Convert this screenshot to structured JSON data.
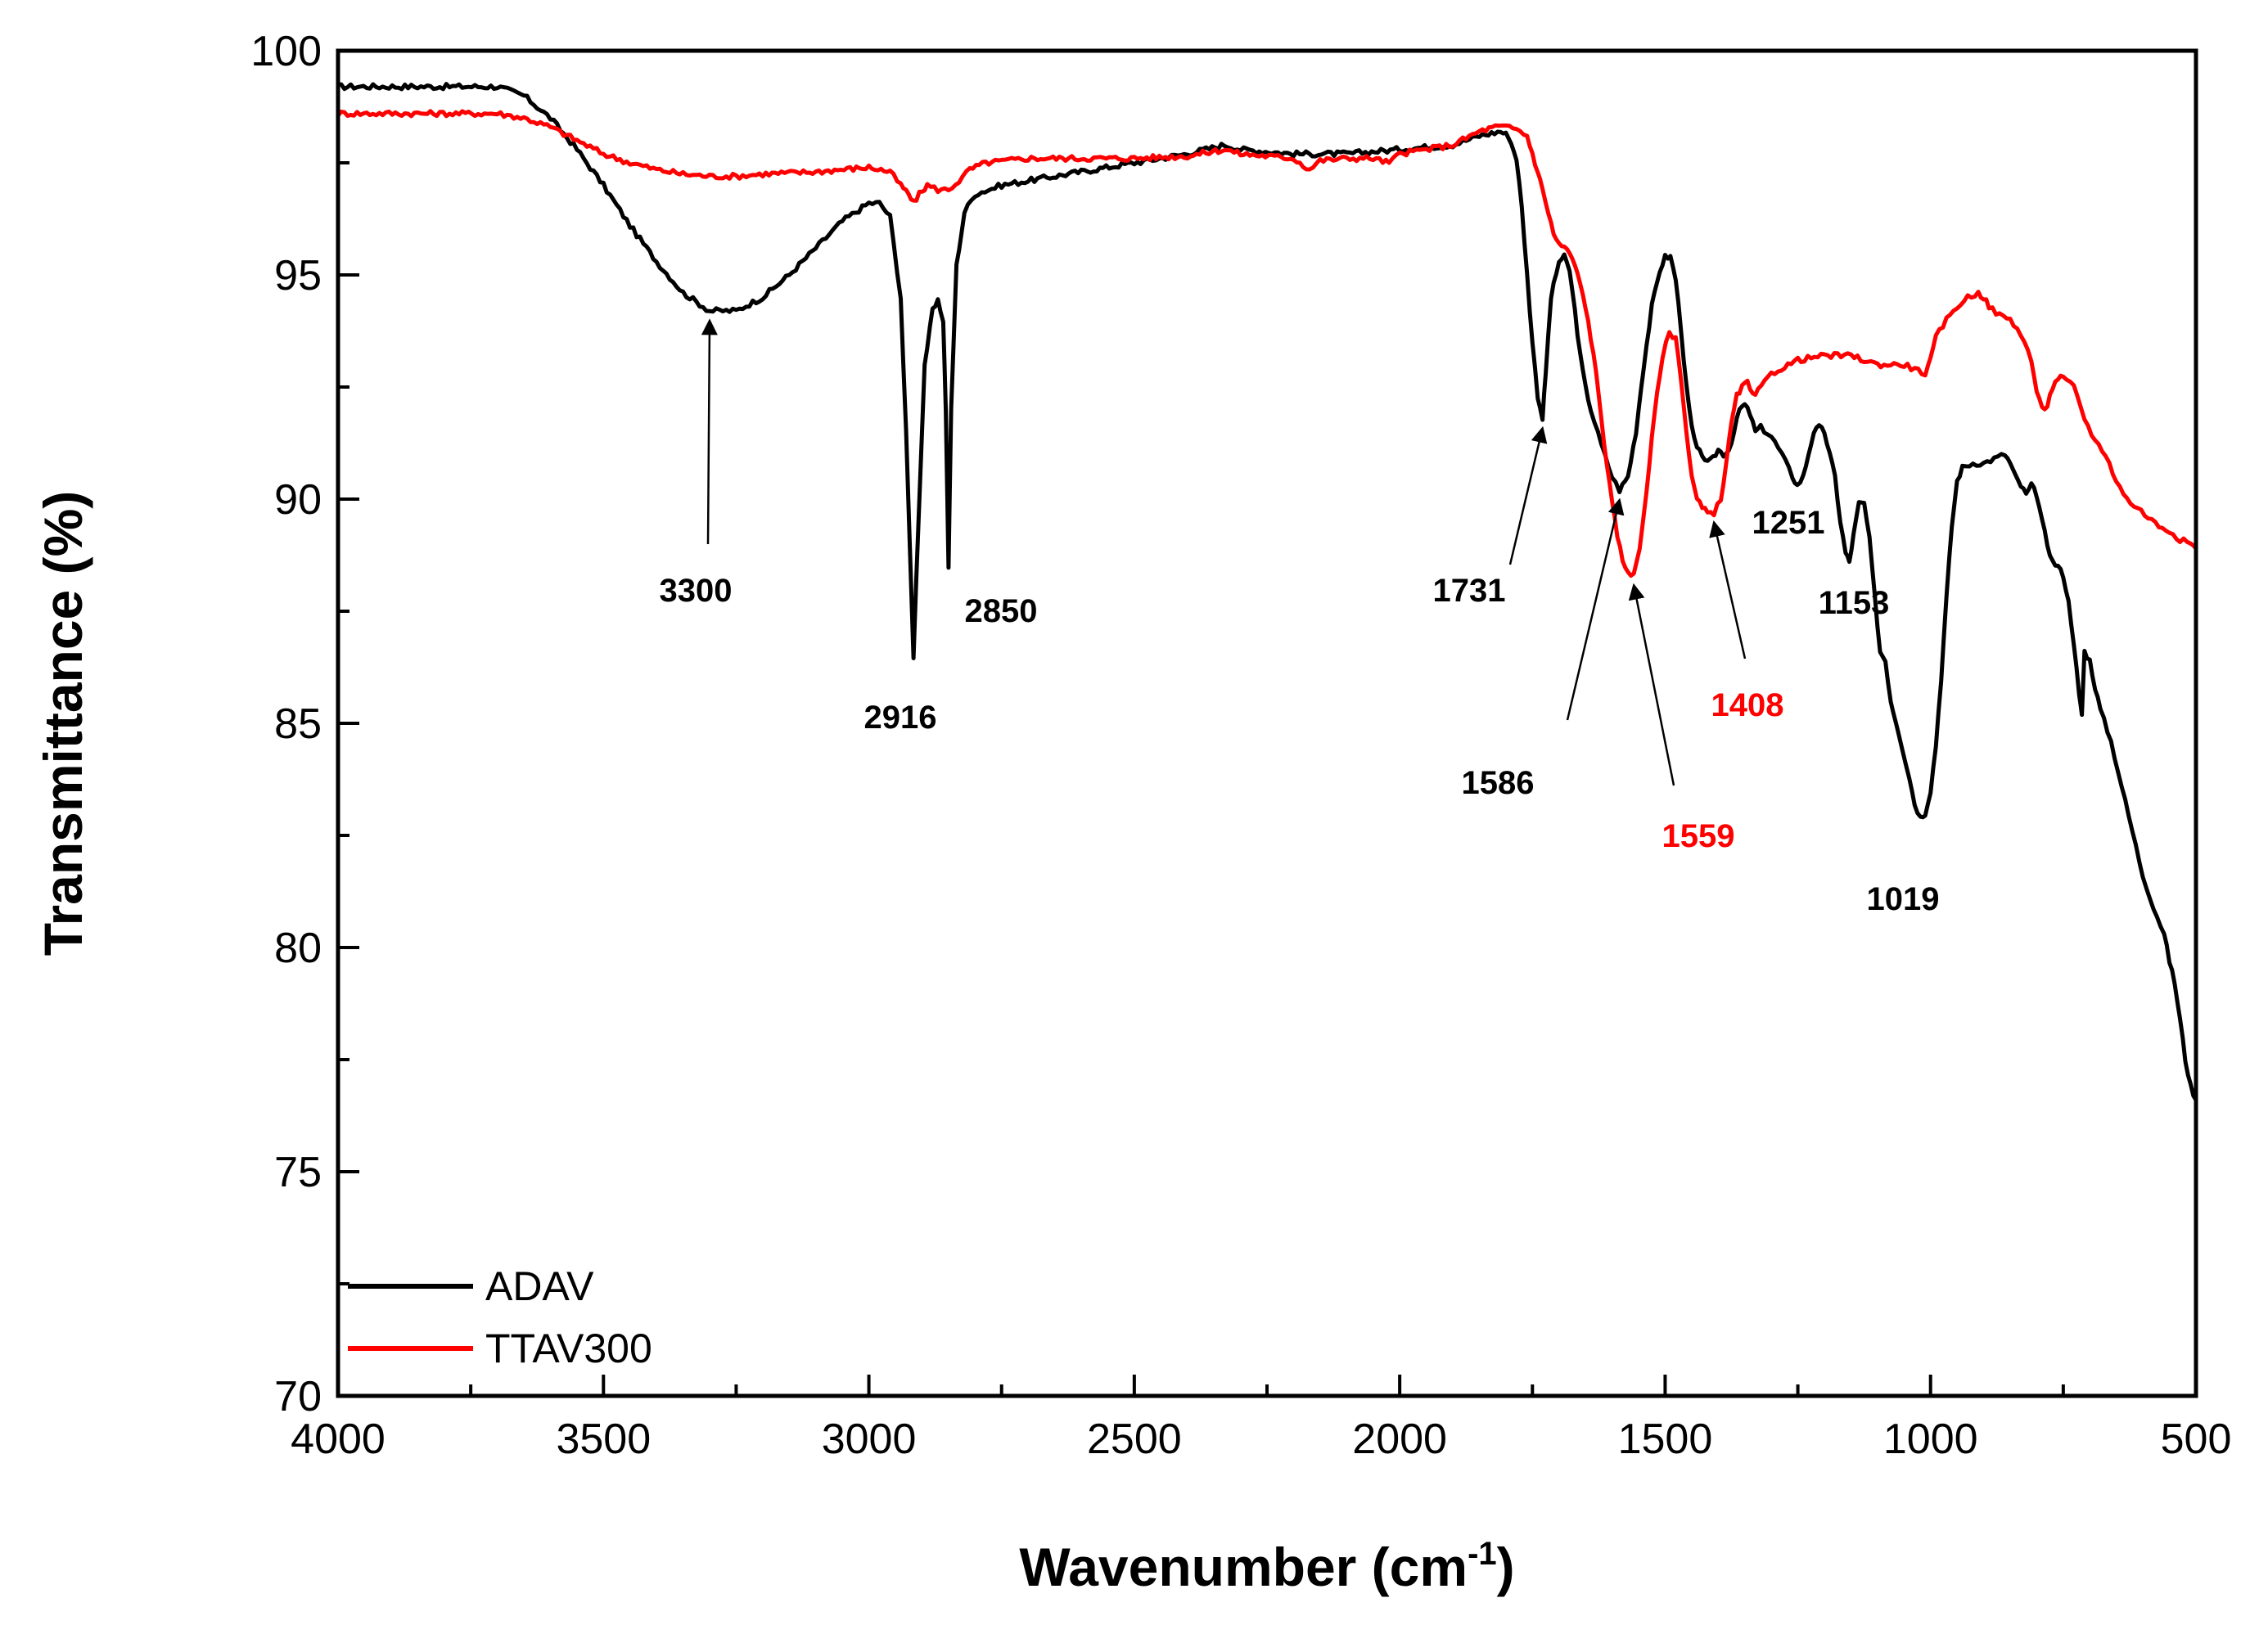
{
  "chart_data": {
    "type": "line",
    "title": "",
    "xlabel": "Wavenumber (cm",
    "xlabel_sup": "-1",
    "xlabel_close": ")",
    "ylabel": "Transmittance (%)",
    "xlim": [
      4000,
      500
    ],
    "ylim": [
      70,
      100
    ],
    "x_ticks": [
      4000,
      3500,
      3000,
      2500,
      2000,
      1500,
      1000,
      500
    ],
    "x_tick_labels": [
      "4000",
      "3500",
      "3000",
      "2500",
      "2000",
      "1500",
      "1000",
      "500"
    ],
    "y_ticks": [
      70,
      75,
      80,
      85,
      90,
      95,
      100
    ],
    "y_tick_labels": [
      "70",
      "75",
      "80",
      "85",
      "90",
      "95",
      "100"
    ],
    "grid": false,
    "legend_position": "bottom-left",
    "series": [
      {
        "name": "ADAV",
        "color": "#000000",
        "x": [
          4000,
          3700,
          3650,
          3600,
          3550,
          3500,
          3450,
          3400,
          3350,
          3300,
          3250,
          3200,
          3150,
          3100,
          3050,
          3000,
          2980,
          2960,
          2940,
          2930,
          2916,
          2905,
          2895,
          2880,
          2870,
          2860,
          2855,
          2850,
          2845,
          2835,
          2820,
          2800,
          2750,
          2700,
          2600,
          2500,
          2400,
          2330,
          2300,
          2200,
          2100,
          2000,
          1900,
          1850,
          1810,
          1795,
          1780,
          1770,
          1760,
          1750,
          1740,
          1731,
          1725,
          1715,
          1700,
          1690,
          1680,
          1670,
          1660,
          1650,
          1640,
          1620,
          1600,
          1586,
          1570,
          1555,
          1540,
          1525,
          1510,
          1500,
          1490,
          1480,
          1470,
          1460,
          1450,
          1440,
          1430,
          1420,
          1410,
          1400,
          1390,
          1380,
          1370,
          1360,
          1350,
          1340,
          1330,
          1320,
          1300,
          1280,
          1260,
          1251,
          1240,
          1230,
          1220,
          1210,
          1200,
          1190,
          1180,
          1170,
          1160,
          1153,
          1145,
          1135,
          1125,
          1115,
          1105,
          1095,
          1085,
          1075,
          1060,
          1040,
          1030,
          1019,
          1010,
          1000,
          990,
          980,
          970,
          960,
          950,
          940,
          920,
          900,
          880,
          860,
          850,
          840,
          830,
          820,
          810,
          800,
          790,
          780,
          770,
          760,
          750,
          740,
          730,
          720,
          715,
          710,
          700,
          690,
          680,
          660,
          640,
          620,
          600,
          580,
          560,
          550,
          540,
          530,
          520,
          510,
          500
        ],
        "y": [
          99.2,
          99.2,
          99.0,
          98.5,
          97.8,
          97.0,
          96.1,
          95.3,
          94.6,
          94.2,
          94.2,
          94.5,
          95.0,
          95.6,
          96.2,
          96.6,
          96.6,
          96.3,
          94.5,
          91.5,
          86.5,
          90.0,
          93.0,
          94.2,
          94.4,
          94.0,
          92.0,
          88.5,
          92.0,
          95.2,
          96.4,
          96.8,
          97.0,
          97.1,
          97.3,
          97.5,
          97.7,
          97.9,
          97.8,
          97.7,
          97.7,
          97.8,
          97.9,
          98.1,
          98.2,
          98.1,
          97.6,
          96.5,
          95.0,
          93.5,
          92.3,
          91.8,
          92.8,
          94.5,
          95.3,
          95.4,
          95.1,
          94.2,
          93.2,
          92.5,
          92.0,
          91.2,
          90.5,
          90.2,
          90.5,
          91.5,
          93.0,
          94.3,
          95.1,
          95.4,
          95.4,
          94.9,
          93.8,
          92.5,
          91.6,
          91.1,
          91.0,
          90.8,
          90.9,
          91.1,
          91.0,
          91.1,
          91.5,
          92.0,
          92.1,
          91.9,
          91.5,
          91.6,
          91.4,
          91.0,
          90.5,
          90.3,
          90.5,
          91.0,
          91.5,
          91.6,
          91.5,
          91.0,
          90.5,
          89.5,
          88.8,
          88.6,
          89.2,
          89.9,
          89.9,
          89.1,
          87.8,
          86.6,
          86.4,
          85.5,
          84.8,
          83.8,
          83.2,
          82.9,
          83.0,
          83.5,
          84.5,
          86.0,
          87.8,
          89.4,
          90.4,
          90.7,
          90.8,
          90.8,
          90.9,
          91.0,
          90.8,
          90.5,
          90.3,
          90.1,
          90.3,
          90.1,
          89.5,
          89.0,
          88.6,
          88.5,
          88.3,
          87.7,
          86.8,
          85.6,
          85.2,
          86.6,
          86.4,
          85.8,
          85.3,
          84.6,
          83.6,
          82.6,
          81.6,
          80.9,
          80.3,
          79.7,
          79.2,
          78.4,
          77.5,
          76.9,
          76.6
        ],
        "label_color": "#000000"
      },
      {
        "name": "TTAV300",
        "color": "#ff0000",
        "x": [
          4000,
          3700,
          3650,
          3600,
          3550,
          3500,
          3450,
          3400,
          3350,
          3300,
          3250,
          3200,
          3100,
          3000,
          2960,
          2940,
          2925,
          2916,
          2905,
          2890,
          2870,
          2850,
          2830,
          2810,
          2780,
          2700,
          2600,
          2500,
          2400,
          2330,
          2300,
          2200,
          2170,
          2150,
          2100,
          2050,
          2020,
          2000,
          1950,
          1900,
          1850,
          1820,
          1800,
          1780,
          1760,
          1750,
          1740,
          1731,
          1720,
          1710,
          1700,
          1690,
          1680,
          1670,
          1660,
          1650,
          1640,
          1630,
          1620,
          1610,
          1600,
          1590,
          1580,
          1570,
          1559,
          1548,
          1535,
          1520,
          1505,
          1492,
          1480,
          1470,
          1460,
          1450,
          1440,
          1430,
          1420,
          1408,
          1395,
          1385,
          1375,
          1365,
          1355,
          1345,
          1335,
          1325,
          1300,
          1250,
          1200,
          1150,
          1100,
          1050,
          1030,
          1010,
          1000,
          990,
          970,
          950,
          930,
          910,
          900,
          890,
          870,
          850,
          830,
          810,
          800,
          790,
          780,
          770,
          760,
          750,
          730,
          710,
          690,
          670,
          650,
          630,
          610,
          590,
          570,
          550,
          530,
          510,
          500
        ],
        "y": [
          98.6,
          98.6,
          98.5,
          98.3,
          98.0,
          97.7,
          97.5,
          97.35,
          97.25,
          97.2,
          97.2,
          97.25,
          97.3,
          97.4,
          97.3,
          97.0,
          96.8,
          96.6,
          96.8,
          97.0,
          96.9,
          96.9,
          97.1,
          97.35,
          97.5,
          97.6,
          97.6,
          97.6,
          97.65,
          97.8,
          97.7,
          97.6,
          97.35,
          97.55,
          97.6,
          97.6,
          97.5,
          97.7,
          97.8,
          97.9,
          98.2,
          98.3,
          98.3,
          98.25,
          98.1,
          97.7,
          97.3,
          96.9,
          96.4,
          95.9,
          95.7,
          95.6,
          95.5,
          95.2,
          94.8,
          94.3,
          93.6,
          92.8,
          91.8,
          90.8,
          89.9,
          89.2,
          88.6,
          88.4,
          88.3,
          88.9,
          90.2,
          91.9,
          93.2,
          93.7,
          93.6,
          92.7,
          91.5,
          90.5,
          90.0,
          89.8,
          89.7,
          89.7,
          90.0,
          90.8,
          91.7,
          92.3,
          92.5,
          92.6,
          92.3,
          92.4,
          92.8,
          93.1,
          93.2,
          93.2,
          93.0,
          93.0,
          92.9,
          92.8,
          93.1,
          93.6,
          94.0,
          94.3,
          94.5,
          94.6,
          94.5,
          94.3,
          94.1,
          94.0,
          93.7,
          93.1,
          92.4,
          92.0,
          92.1,
          92.5,
          92.7,
          92.7,
          92.5,
          91.8,
          91.3,
          91.0,
          90.4,
          90.0,
          89.8,
          89.6,
          89.4,
          89.3,
          89.1,
          89.0,
          88.9
        ],
        "label_color": "#ff0000"
      }
    ],
    "annotations": [
      {
        "label": "3300",
        "color": "#000000",
        "peak_x": 3300,
        "peak_y": 94.2
      },
      {
        "label": "2916",
        "color": "#000000",
        "peak_x": 2916,
        "peak_y": 86.5
      },
      {
        "label": "2850",
        "color": "#000000",
        "peak_x": 2850,
        "peak_y": 88.5
      },
      {
        "label": "1731",
        "color": "#000000",
        "peak_x": 1731,
        "peak_y": 91.8
      },
      {
        "label": "1586",
        "color": "#000000",
        "peak_x": 1586,
        "peak_y": 90.2
      },
      {
        "label": "1559",
        "color": "#ff0000",
        "peak_x": 1559,
        "peak_y": 88.3
      },
      {
        "label": "1408",
        "color": "#ff0000",
        "peak_x": 1408,
        "peak_y": 89.7
      },
      {
        "label": "1251",
        "color": "#000000",
        "peak_x": 1251,
        "peak_y": 90.3
      },
      {
        "label": "1153",
        "color": "#000000",
        "peak_x": 1153,
        "peak_y": 88.6
      },
      {
        "label": "1019",
        "color": "#000000",
        "peak_x": 1019,
        "peak_y": 82.9
      }
    ]
  }
}
